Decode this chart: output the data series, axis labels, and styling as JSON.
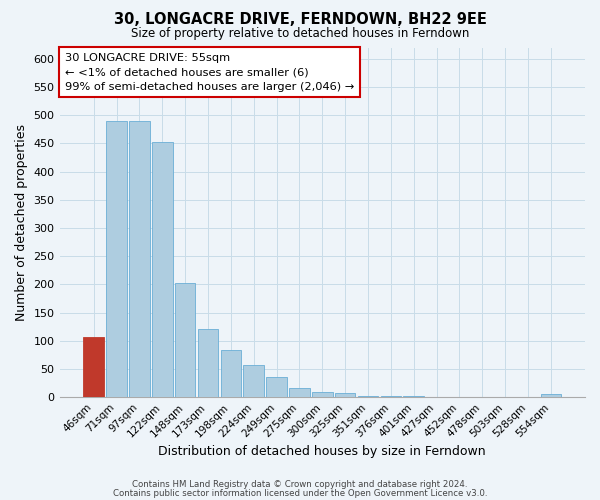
{
  "title": "30, LONGACRE DRIVE, FERNDOWN, BH22 9EE",
  "subtitle": "Size of property relative to detached houses in Ferndown",
  "xlabel": "Distribution of detached houses by size in Ferndown",
  "ylabel": "Number of detached properties",
  "footer_line1": "Contains HM Land Registry data © Crown copyright and database right 2024.",
  "footer_line2": "Contains public sector information licensed under the Open Government Licence v3.0.",
  "bin_labels": [
    "46sqm",
    "71sqm",
    "97sqm",
    "122sqm",
    "148sqm",
    "173sqm",
    "198sqm",
    "224sqm",
    "249sqm",
    "275sqm",
    "300sqm",
    "325sqm",
    "351sqm",
    "376sqm",
    "401sqm",
    "427sqm",
    "452sqm",
    "478sqm",
    "503sqm",
    "528sqm",
    "554sqm"
  ],
  "bar_heights": [
    106,
    490,
    490,
    453,
    202,
    121,
    83,
    57,
    36,
    16,
    9,
    8,
    2,
    2,
    2,
    1,
    0,
    0,
    0,
    0,
    5
  ],
  "highlight_bar_index": 0,
  "bar_color": "#aecde0",
  "bar_edge_color": "#6aaed6",
  "highlight_bar_color": "#c0392b",
  "highlight_bar_edge_color": "#c0392b",
  "ylim": [
    0,
    620
  ],
  "yticks": [
    0,
    50,
    100,
    150,
    200,
    250,
    300,
    350,
    400,
    450,
    500,
    550,
    600
  ],
  "annotation_title": "30 LONGACRE DRIVE: 55sqm",
  "annotation_line1": "← <1% of detached houses are smaller (6)",
  "annotation_line2": "99% of semi-detached houses are larger (2,046) →",
  "annotation_box_facecolor": "#ffffff",
  "annotation_box_edgecolor": "#cc0000",
  "grid_color": "#c8dce8",
  "background_color": "#eef4f9",
  "axes_background_color": "#eef4f9"
}
